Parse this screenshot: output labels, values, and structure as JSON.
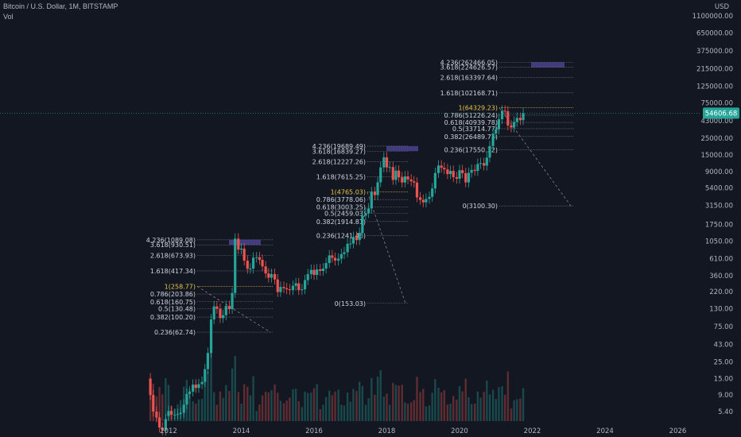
{
  "header": {
    "symbol": "Bitcoin / U.S. Dollar, 1M, BITSTAMP",
    "volume_label": "Vol"
  },
  "colors": {
    "background": "#131722",
    "up": "#26a69a",
    "down": "#ef5350",
    "fib_line": "#787b86",
    "fib_highlight": "#e8c547",
    "target_box": "#6a5acd",
    "current_price_bg": "#26a69a",
    "dashed": "#b2b5be"
  },
  "chart_data": {
    "type": "candlestick",
    "y_scale": "log",
    "currency": "USD",
    "x_ticks": [
      "2012",
      "2014",
      "2016",
      "2018",
      "2020",
      "2022",
      "2024",
      "2026"
    ],
    "y_ticks": [
      "1100000.00",
      "650000.00",
      "375000.00",
      "215000.00",
      "125000.00",
      "75000.00",
      "43000.00",
      "25000.00",
      "15000.00",
      "9000.00",
      "5400.00",
      "3150.00",
      "1750.00",
      "1050.00",
      "610.00",
      "360.00",
      "220.00",
      "130.00",
      "75.00",
      "43.00",
      "25.00",
      "15.00",
      "9.00",
      "5.40"
    ],
    "current_price": "54606.68",
    "fib_sets": [
      {
        "name": "cycle-2013",
        "levels": [
          "4.236(1089.08)",
          "3.618(930.51)",
          "2.618(673.93)",
          "1.618(417.34)",
          "1(258.77)",
          "0.786(203.86)",
          "0.618(160.75)",
          "0.5(130.48)",
          "0.382(100.20)",
          "0.236(62.74)"
        ],
        "values": [
          1089.08,
          930.51,
          673.93,
          417.34,
          258.77,
          203.86,
          160.75,
          130.48,
          100.2,
          62.74
        ],
        "target_range": [
          930.51,
          1089.08
        ]
      },
      {
        "name": "cycle-2017",
        "levels": [
          "4.236(19689.49)",
          "3.618(16839.27)",
          "2.618(12227.26)",
          "1.618(7615.25)",
          "1(4765.03)",
          "0.786(3778.06)",
          "0.618(3003.25)",
          "0.5(2459.03)",
          "0.382(1914.81)",
          "0.236(1241.46)",
          "0(153.03)"
        ],
        "values": [
          19689.49,
          16839.27,
          12227.26,
          7615.25,
          4765.03,
          3778.06,
          3003.25,
          2459.03,
          1914.81,
          1241.46,
          153.03
        ],
        "target_range": [
          16839.27,
          19689.49
        ]
      },
      {
        "name": "cycle-2021",
        "levels": [
          "4.236(262466.05)",
          "3.618(224626.57)",
          "2.618(163397.64)",
          "1.618(102168.71)",
          "1(64329.23)",
          "0.786(51226.24)",
          "0.618(40939.78)",
          "0.5(33714.77)",
          "0.382(26489.75)",
          "0.236(17550.32)",
          "0(3100.30)"
        ],
        "values": [
          262466.05,
          224626.57,
          163397.64,
          102168.71,
          64329.23,
          51226.24,
          40939.78,
          33714.77,
          26489.75,
          17550.32,
          3100.3
        ],
        "target_range": [
          224626.57,
          262466.05
        ]
      }
    ],
    "candles": [
      {
        "t": 2011.5,
        "o": 15,
        "c": 9
      },
      {
        "t": 2011.58,
        "o": 9,
        "c": 5.4
      },
      {
        "t": 2011.67,
        "o": 5.4,
        "c": 4.5
      },
      {
        "t": 2011.75,
        "o": 4.5,
        "c": 3.3
      },
      {
        "t": 2011.83,
        "o": 3.3,
        "c": 3
      },
      {
        "t": 2011.92,
        "o": 3,
        "c": 4.3
      },
      {
        "t": 2012.0,
        "o": 4.7,
        "c": 5.5
      },
      {
        "t": 2012.08,
        "o": 5.5,
        "c": 4.9
      },
      {
        "t": 2012.17,
        "o": 4.9,
        "c": 4.9
      },
      {
        "t": 2012.25,
        "o": 4.9,
        "c": 5
      },
      {
        "t": 2012.33,
        "o": 5,
        "c": 5.2
      },
      {
        "t": 2012.42,
        "o": 5.2,
        "c": 6.7
      },
      {
        "t": 2012.5,
        "o": 6.7,
        "c": 9.3
      },
      {
        "t": 2012.58,
        "o": 9.3,
        "c": 10
      },
      {
        "t": 2012.67,
        "o": 10,
        "c": 12.4
      },
      {
        "t": 2012.75,
        "o": 12.4,
        "c": 11.2
      },
      {
        "t": 2012.83,
        "o": 11.2,
        "c": 12.6
      },
      {
        "t": 2012.92,
        "o": 12.6,
        "c": 13.5
      },
      {
        "t": 2013.0,
        "o": 13.5,
        "c": 20
      },
      {
        "t": 2013.08,
        "o": 20,
        "c": 33
      },
      {
        "t": 2013.17,
        "o": 33,
        "c": 93
      },
      {
        "t": 2013.25,
        "o": 93,
        "c": 139
      },
      {
        "t": 2013.33,
        "o": 139,
        "c": 129
      },
      {
        "t": 2013.42,
        "o": 129,
        "c": 97
      },
      {
        "t": 2013.5,
        "o": 97,
        "c": 106
      },
      {
        "t": 2013.58,
        "o": 106,
        "c": 141
      },
      {
        "t": 2013.67,
        "o": 141,
        "c": 128
      },
      {
        "t": 2013.75,
        "o": 128,
        "c": 211
      },
      {
        "t": 2013.83,
        "o": 211,
        "c": 1130
      },
      {
        "t": 2013.92,
        "o": 1130,
        "c": 805
      },
      {
        "t": 2014.0,
        "o": 805,
        "c": 830
      },
      {
        "t": 2014.08,
        "o": 830,
        "c": 573
      },
      {
        "t": 2014.17,
        "o": 573,
        "c": 445
      },
      {
        "t": 2014.25,
        "o": 445,
        "c": 448
      },
      {
        "t": 2014.33,
        "o": 448,
        "c": 628
      },
      {
        "t": 2014.42,
        "o": 628,
        "c": 636
      },
      {
        "t": 2014.5,
        "o": 636,
        "c": 586
      },
      {
        "t": 2014.58,
        "o": 586,
        "c": 479
      },
      {
        "t": 2014.67,
        "o": 479,
        "c": 386
      },
      {
        "t": 2014.75,
        "o": 386,
        "c": 338
      },
      {
        "t": 2014.83,
        "o": 338,
        "c": 378
      },
      {
        "t": 2014.92,
        "o": 378,
        "c": 320
      },
      {
        "t": 2015.0,
        "o": 320,
        "c": 217
      },
      {
        "t": 2015.08,
        "o": 217,
        "c": 254
      },
      {
        "t": 2015.17,
        "o": 254,
        "c": 244
      },
      {
        "t": 2015.25,
        "o": 244,
        "c": 236
      },
      {
        "t": 2015.33,
        "o": 236,
        "c": 230
      },
      {
        "t": 2015.42,
        "o": 230,
        "c": 263
      },
      {
        "t": 2015.5,
        "o": 263,
        "c": 284
      },
      {
        "t": 2015.58,
        "o": 284,
        "c": 230
      },
      {
        "t": 2015.67,
        "o": 230,
        "c": 236
      },
      {
        "t": 2015.75,
        "o": 236,
        "c": 313
      },
      {
        "t": 2015.83,
        "o": 313,
        "c": 378
      },
      {
        "t": 2015.92,
        "o": 378,
        "c": 430
      },
      {
        "t": 2016.0,
        "o": 430,
        "c": 368
      },
      {
        "t": 2016.08,
        "o": 368,
        "c": 437
      },
      {
        "t": 2016.17,
        "o": 437,
        "c": 416
      },
      {
        "t": 2016.25,
        "o": 416,
        "c": 448
      },
      {
        "t": 2016.33,
        "o": 448,
        "c": 531
      },
      {
        "t": 2016.42,
        "o": 531,
        "c": 673
      },
      {
        "t": 2016.5,
        "o": 673,
        "c": 624
      },
      {
        "t": 2016.58,
        "o": 624,
        "c": 573
      },
      {
        "t": 2016.67,
        "o": 573,
        "c": 608
      },
      {
        "t": 2016.75,
        "o": 608,
        "c": 700
      },
      {
        "t": 2016.83,
        "o": 700,
        "c": 742
      },
      {
        "t": 2016.92,
        "o": 742,
        "c": 963
      },
      {
        "t": 2017.0,
        "o": 963,
        "c": 970
      },
      {
        "t": 2017.08,
        "o": 970,
        "c": 1190
      },
      {
        "t": 2017.17,
        "o": 1190,
        "c": 1080
      },
      {
        "t": 2017.25,
        "o": 1080,
        "c": 1350
      },
      {
        "t": 2017.33,
        "o": 1350,
        "c": 2300
      },
      {
        "t": 2017.42,
        "o": 2300,
        "c": 2480
      },
      {
        "t": 2017.5,
        "o": 2480,
        "c": 2870
      },
      {
        "t": 2017.58,
        "o": 2870,
        "c": 4730
      },
      {
        "t": 2017.67,
        "o": 4730,
        "c": 4340
      },
      {
        "t": 2017.75,
        "o": 4340,
        "c": 6440
      },
      {
        "t": 2017.83,
        "o": 6440,
        "c": 10200
      },
      {
        "t": 2017.92,
        "o": 10200,
        "c": 13900
      },
      {
        "t": 2018.0,
        "o": 13900,
        "c": 10200
      },
      {
        "t": 2018.08,
        "o": 10200,
        "c": 10300
      },
      {
        "t": 2018.17,
        "o": 10300,
        "c": 6930
      },
      {
        "t": 2018.25,
        "o": 6930,
        "c": 9240
      },
      {
        "t": 2018.33,
        "o": 9240,
        "c": 7500
      },
      {
        "t": 2018.42,
        "o": 7500,
        "c": 6400
      },
      {
        "t": 2018.5,
        "o": 6400,
        "c": 7730
      },
      {
        "t": 2018.58,
        "o": 7730,
        "c": 7030
      },
      {
        "t": 2018.67,
        "o": 7030,
        "c": 6630
      },
      {
        "t": 2018.75,
        "o": 6630,
        "c": 6370
      },
      {
        "t": 2018.83,
        "o": 6370,
        "c": 4040
      },
      {
        "t": 2018.92,
        "o": 4040,
        "c": 3740
      },
      {
        "t": 2019.0,
        "o": 3740,
        "c": 3460
      },
      {
        "t": 2019.08,
        "o": 3460,
        "c": 3850
      },
      {
        "t": 2019.17,
        "o": 3850,
        "c": 4100
      },
      {
        "t": 2019.25,
        "o": 4100,
        "c": 5320
      },
      {
        "t": 2019.33,
        "o": 5320,
        "c": 8570
      },
      {
        "t": 2019.42,
        "o": 8570,
        "c": 10800
      },
      {
        "t": 2019.5,
        "o": 10800,
        "c": 10080
      },
      {
        "t": 2019.58,
        "o": 10080,
        "c": 9600
      },
      {
        "t": 2019.67,
        "o": 9600,
        "c": 8300
      },
      {
        "t": 2019.75,
        "o": 8300,
        "c": 9150
      },
      {
        "t": 2019.83,
        "o": 9150,
        "c": 7550
      },
      {
        "t": 2019.92,
        "o": 7550,
        "c": 7190
      },
      {
        "t": 2020.0,
        "o": 7190,
        "c": 9350
      },
      {
        "t": 2020.08,
        "o": 9350,
        "c": 8540
      },
      {
        "t": 2020.17,
        "o": 8540,
        "c": 6410
      },
      {
        "t": 2020.25,
        "o": 6410,
        "c": 8630
      },
      {
        "t": 2020.33,
        "o": 8630,
        "c": 9450
      },
      {
        "t": 2020.42,
        "o": 9450,
        "c": 9140
      },
      {
        "t": 2020.5,
        "o": 9140,
        "c": 11350
      },
      {
        "t": 2020.58,
        "o": 11350,
        "c": 11650
      },
      {
        "t": 2020.67,
        "o": 11650,
        "c": 10780
      },
      {
        "t": 2020.75,
        "o": 10780,
        "c": 13800
      },
      {
        "t": 2020.83,
        "o": 13800,
        "c": 19700
      },
      {
        "t": 2020.92,
        "o": 19700,
        "c": 28990
      },
      {
        "t": 2021.0,
        "o": 28990,
        "c": 33100
      },
      {
        "t": 2021.08,
        "o": 33100,
        "c": 45200
      },
      {
        "t": 2021.17,
        "o": 45200,
        "c": 58800
      },
      {
        "t": 2021.25,
        "o": 58800,
        "c": 57700
      },
      {
        "t": 2021.33,
        "o": 57700,
        "c": 37300
      },
      {
        "t": 2021.42,
        "o": 37300,
        "c": 35000
      },
      {
        "t": 2021.5,
        "o": 35000,
        "c": 41500
      },
      {
        "t": 2021.58,
        "o": 41500,
        "c": 47100
      },
      {
        "t": 2021.67,
        "o": 47100,
        "c": 43800
      },
      {
        "t": 2021.75,
        "o": 43800,
        "c": 54606.68
      }
    ]
  }
}
